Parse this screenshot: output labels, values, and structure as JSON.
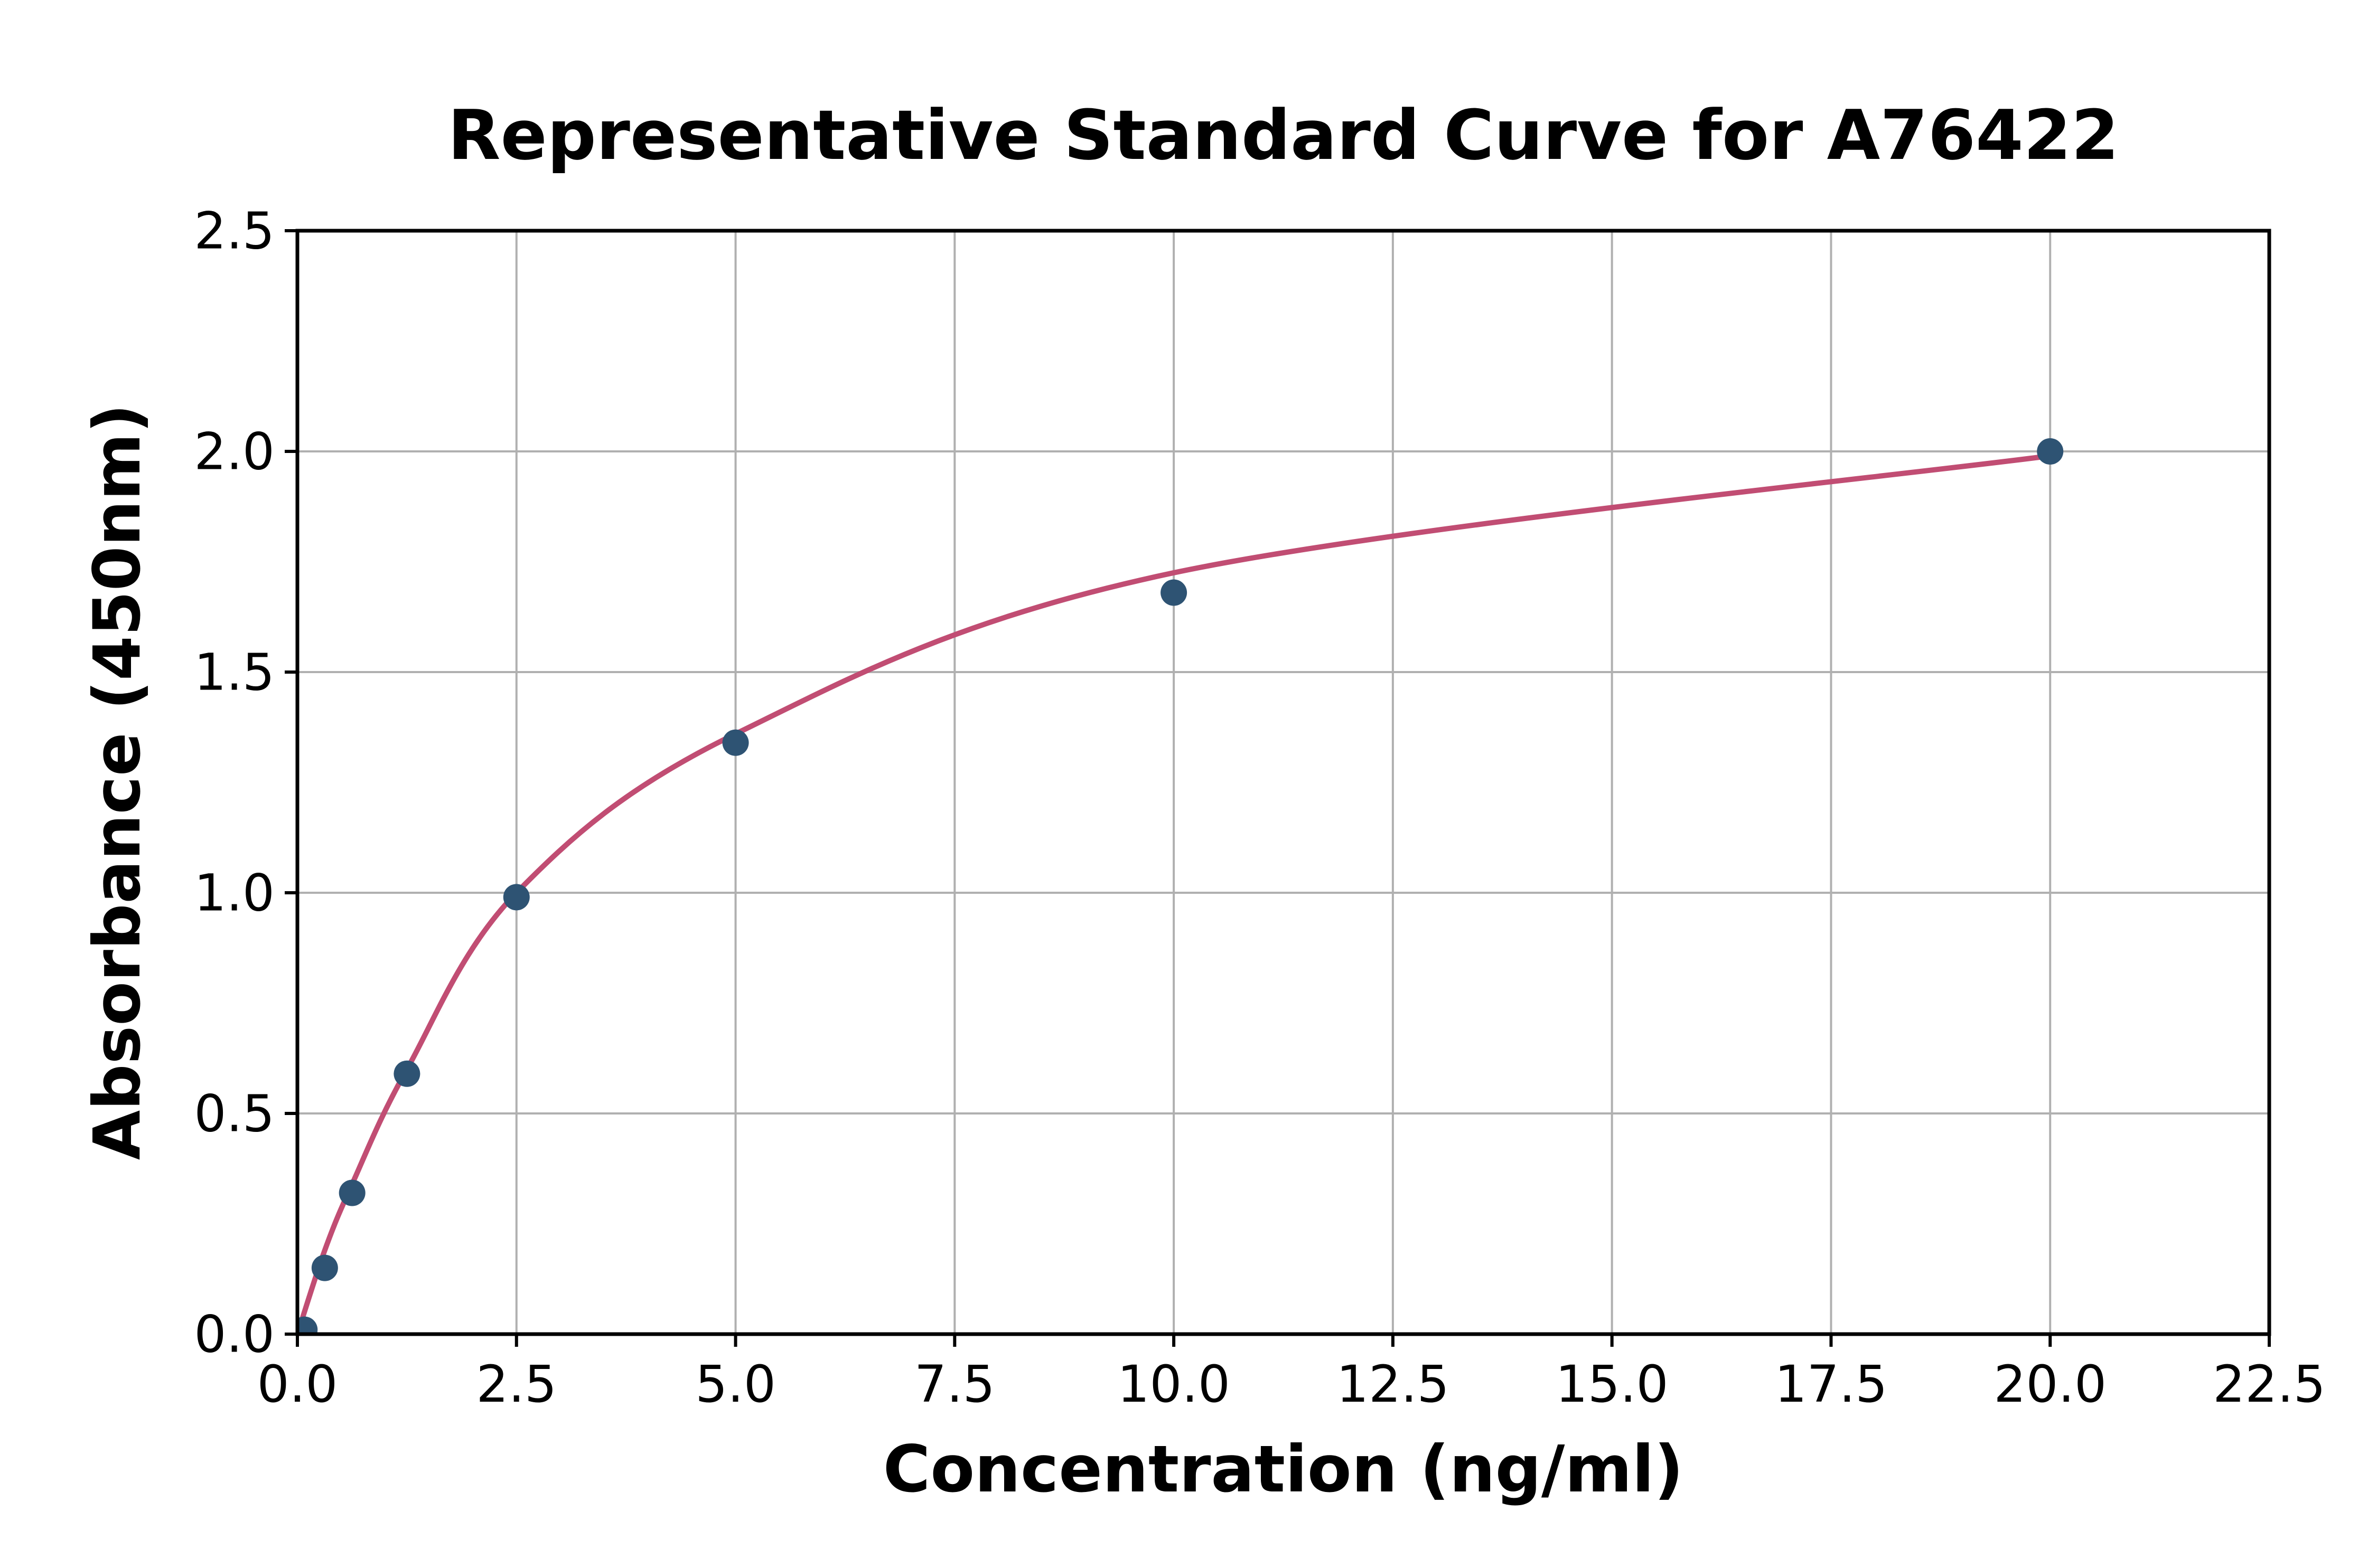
{
  "chart_data": {
    "type": "scatter",
    "title": "Representative Standard Curve for A76422",
    "xlabel": "Concentration (ng/ml)",
    "ylabel": "Absorbance (450nm)",
    "xlim": [
      0,
      22.5
    ],
    "ylim": [
      0,
      2.5
    ],
    "x_tick_labels": [
      "0.0",
      "2.5",
      "5.0",
      "7.5",
      "10.0",
      "12.5",
      "15.0",
      "17.5",
      "20.0",
      "22.5"
    ],
    "y_tick_labels": [
      "0.0",
      "0.5",
      "1.0",
      "1.5",
      "2.0",
      "2.5"
    ],
    "grid": true,
    "legend": false,
    "series": [
      {
        "name": "standard-points",
        "type": "scatter",
        "marker": "circle",
        "color": "#2e5373",
        "points": [
          [
            0.08,
            0.01
          ],
          [
            0.3125,
            0.15
          ],
          [
            0.625,
            0.32
          ],
          [
            1.25,
            0.59
          ],
          [
            2.5,
            0.99
          ],
          [
            5,
            1.34
          ],
          [
            10,
            1.68
          ],
          [
            20,
            2.0
          ]
        ]
      },
      {
        "name": "fitted-curve",
        "type": "line",
        "color": "#c14d73",
        "points": [
          [
            0,
            0
          ],
          [
            0.3125,
            0.19
          ],
          [
            0.625,
            0.34
          ],
          [
            1.25,
            0.6
          ],
          [
            2.5,
            1.0
          ],
          [
            5,
            1.36
          ],
          [
            10,
            1.725
          ],
          [
            20,
            1.99
          ]
        ]
      }
    ],
    "colors": {
      "grid": "#b0b0b0",
      "axis": "#000000",
      "text": "#000000",
      "background": "#ffffff"
    }
  }
}
